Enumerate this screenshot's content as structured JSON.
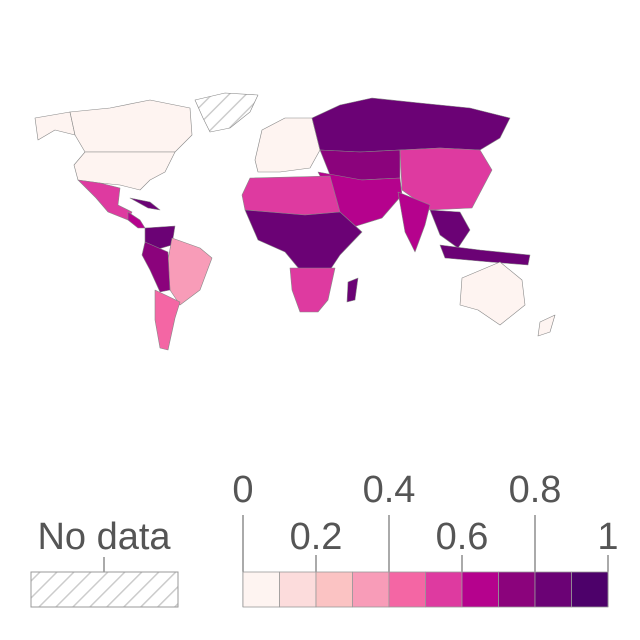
{
  "map": {
    "legend": {
      "no_data_label": "No data",
      "ticks": [
        0,
        0.2,
        0.4,
        0.6,
        0.8,
        1
      ],
      "colors": [
        "#fef4f1",
        "#fcdcdc",
        "#fbc3c3",
        "#f89cb8",
        "#f466a4",
        "#de3aa0",
        "#b5028d",
        "#8b037c",
        "#6b0275",
        "#4d016a"
      ],
      "no_data_color": "#cccccc"
    }
  }
}
